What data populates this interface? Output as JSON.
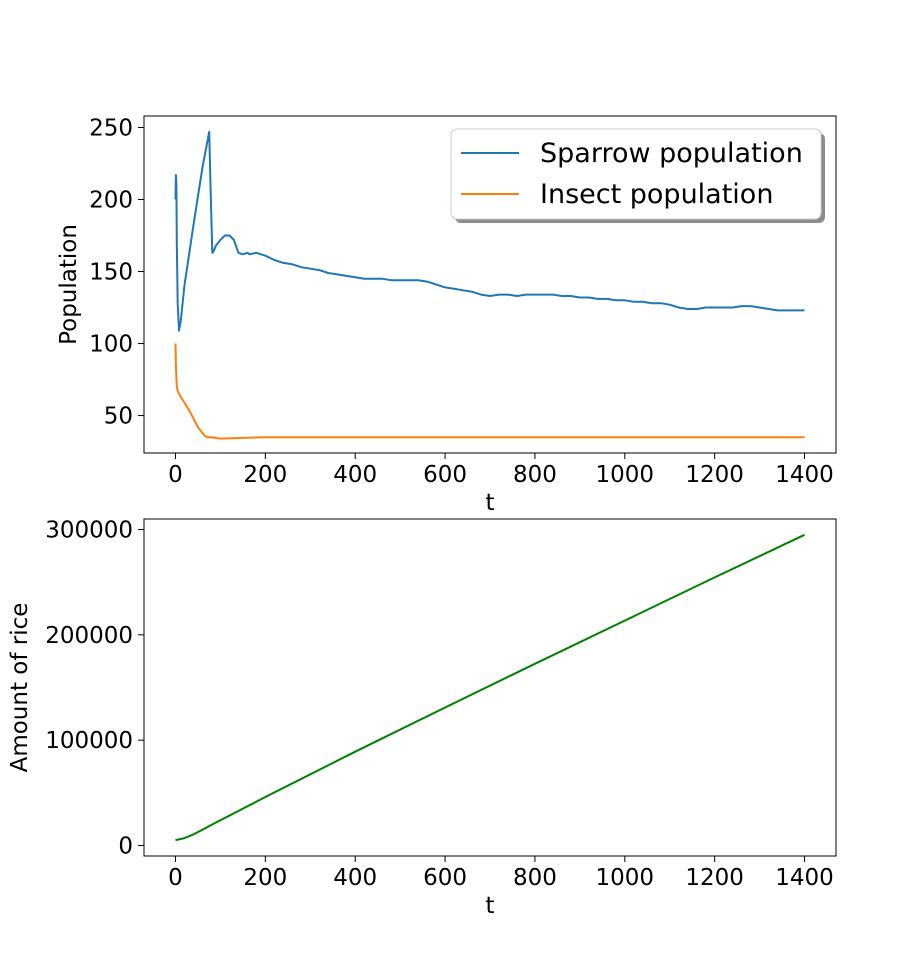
{
  "chart_data": [
    {
      "type": "line",
      "xlabel": "t",
      "ylabel": "Population",
      "xlim": [
        -70,
        1470
      ],
      "ylim": [
        24,
        258
      ],
      "xticks": [
        0,
        200,
        400,
        600,
        800,
        1000,
        1200,
        1400
      ],
      "yticks": [
        50,
        100,
        150,
        200,
        250
      ],
      "grid": false,
      "legend": {
        "placement": "top-right",
        "shadow": true
      },
      "series": [
        {
          "name": "Sparrow population",
          "color": "#1f77b4",
          "x": [
            0,
            1,
            2,
            3,
            5,
            8,
            12,
            20,
            40,
            60,
            75,
            78,
            82,
            85,
            90,
            100,
            110,
            120,
            130,
            140,
            150,
            160,
            165,
            180,
            200,
            220,
            240,
            260,
            280,
            300,
            320,
            340,
            360,
            380,
            400,
            420,
            440,
            460,
            480,
            500,
            520,
            540,
            560,
            580,
            600,
            620,
            640,
            660,
            680,
            700,
            720,
            740,
            760,
            780,
            800,
            820,
            840,
            860,
            880,
            900,
            920,
            940,
            960,
            980,
            1000,
            1020,
            1040,
            1060,
            1080,
            1100,
            1120,
            1140,
            1160,
            1180,
            1200,
            1220,
            1240,
            1260,
            1280,
            1300,
            1320,
            1340,
            1360,
            1380,
            1400
          ],
          "y": [
            200,
            217,
            210,
            170,
            128,
            109,
            116,
            140,
            182,
            222,
            247,
            210,
            163,
            164,
            168,
            172,
            175,
            175,
            172,
            163,
            162,
            163,
            162,
            163,
            161,
            158,
            156,
            155,
            153,
            152,
            151,
            149,
            148,
            147,
            146,
            145,
            145,
            145,
            144,
            144,
            144,
            144,
            143,
            141,
            139,
            138,
            137,
            136,
            134,
            133,
            134,
            134,
            133,
            134,
            134,
            134,
            134,
            133,
            133,
            132,
            132,
            131,
            131,
            130,
            130,
            129,
            129,
            128,
            128,
            127,
            125,
            124,
            124,
            125,
            125,
            125,
            125,
            126,
            126,
            125,
            124,
            123,
            123,
            123,
            123
          ]
        },
        {
          "name": "Insect population",
          "color": "#ff7f0e",
          "x": [
            0,
            1,
            2,
            3,
            5,
            10,
            20,
            30,
            40,
            50,
            60,
            65,
            70,
            80,
            100,
            200,
            400,
            600,
            800,
            1000,
            1200,
            1400
          ],
          "y": [
            100,
            85,
            76,
            70,
            67,
            64,
            59,
            54,
            48,
            42,
            38,
            36,
            35,
            35,
            34,
            35,
            35,
            35,
            35,
            35,
            35,
            35
          ]
        }
      ]
    },
    {
      "type": "line",
      "xlabel": "t",
      "ylabel": "Amount of rice",
      "xlim": [
        -70,
        1470
      ],
      "ylim": [
        -10000,
        310000
      ],
      "xticks": [
        0,
        200,
        400,
        600,
        800,
        1000,
        1200,
        1400
      ],
      "yticks": [
        0,
        100000,
        200000,
        300000
      ],
      "grid": false,
      "series": [
        {
          "color": "#008000",
          "x": [
            0,
            20,
            40,
            60,
            80,
            100,
            200,
            400,
            600,
            800,
            1000,
            1200,
            1400
          ],
          "y": [
            5000,
            7000,
            10500,
            15000,
            19500,
            24000,
            46000,
            89000,
            131000,
            172500,
            213500,
            254500,
            295000
          ]
        }
      ]
    }
  ]
}
